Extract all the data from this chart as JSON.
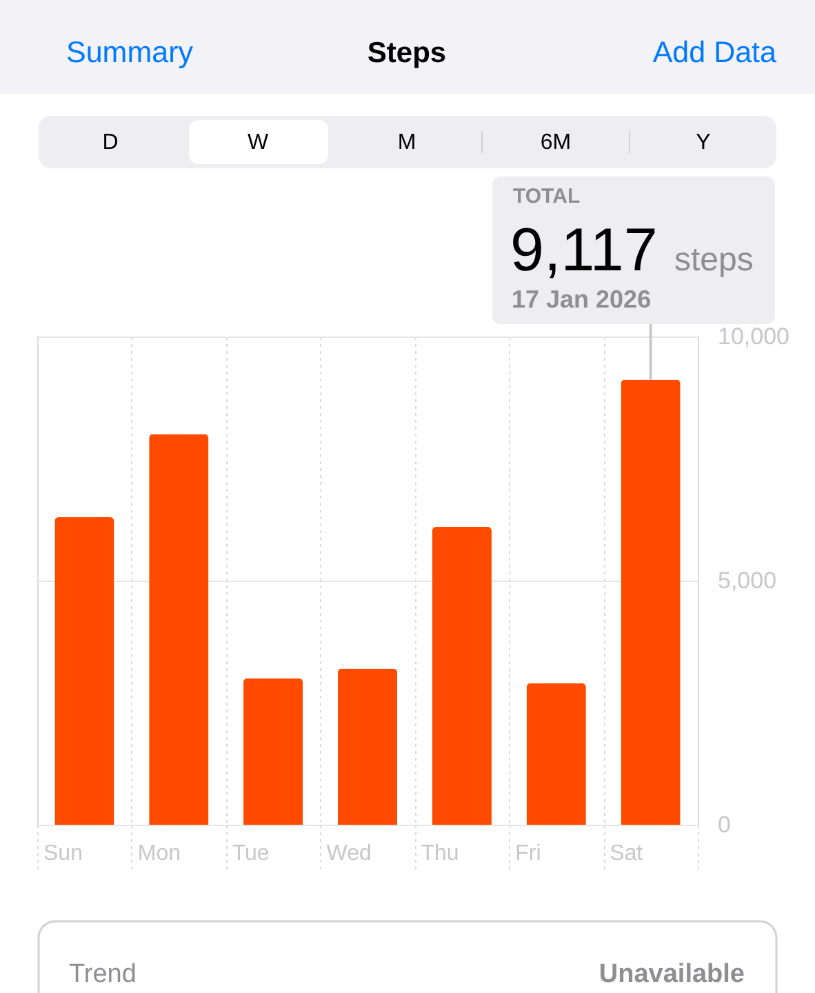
{
  "chart_data": {
    "type": "bar",
    "title": "Steps",
    "categories": [
      "Sun",
      "Mon",
      "Tue",
      "Wed",
      "Thu",
      "Fri",
      "Sat"
    ],
    "values": [
      6300,
      8000,
      3000,
      3200,
      6100,
      2900,
      9117
    ],
    "color": "#ff4a00",
    "ylim": [
      0,
      10000
    ],
    "yticks": [
      0,
      {
        "value": 5000,
        "label": "5,000"
      },
      {
        "value": 10000,
        "label": "10,000"
      }
    ],
    "grid": true,
    "annotations": [
      "Summary",
      "Add Data",
      "D",
      "W",
      "M",
      "6M",
      "Y",
      "TOTAL",
      {
        "text": "9,117",
        "x": "Sat",
        "y": 9117
      },
      "steps",
      {
        "text": "17 Jan 2026",
        "x": "Sat",
        "y": 9117
      },
      "Trend",
      "Unavailable"
    ]
  }
}
